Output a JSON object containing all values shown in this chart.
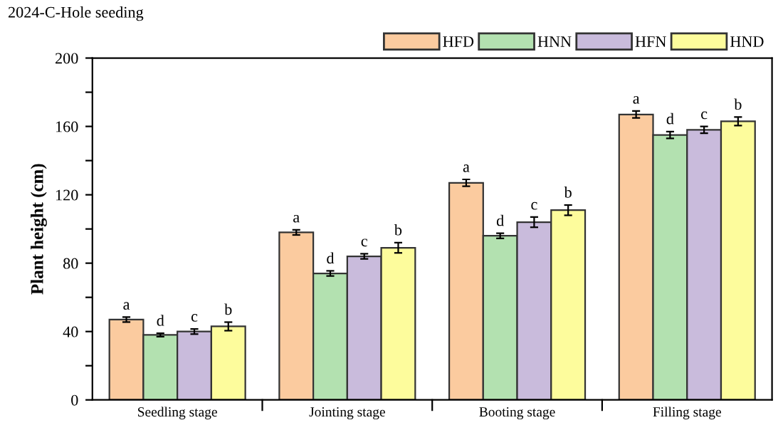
{
  "chart_data": {
    "type": "bar",
    "title": "2024-C-Hole seeding",
    "ylabel": "Plant height (cm)",
    "categories": [
      "Seedling stage",
      "Jointing stage",
      "Booting stage",
      "Filling stage"
    ],
    "series": [
      {
        "name": "HFD",
        "color": "#fbcb9f",
        "values": [
          47,
          98,
          127,
          167
        ],
        "errors": [
          1.5,
          1.5,
          2,
          2
        ],
        "value_labels": [
          "a",
          "a",
          "a",
          "a"
        ]
      },
      {
        "name": "HNN",
        "color": "#b3e1b0",
        "values": [
          38,
          74,
          96,
          155
        ],
        "errors": [
          1,
          1.5,
          1.5,
          2
        ],
        "value_labels": [
          "d",
          "d",
          "d",
          "d"
        ]
      },
      {
        "name": "HFN",
        "color": "#c9bbdc",
        "values": [
          40,
          84,
          104,
          158
        ],
        "errors": [
          1.5,
          1.5,
          3,
          2
        ],
        "value_labels": [
          "c",
          "c",
          "c",
          "c"
        ]
      },
      {
        "name": "HND",
        "color": "#fdfc9c",
        "values": [
          43,
          89,
          111,
          163
        ],
        "errors": [
          2.5,
          3,
          3,
          2.5
        ],
        "value_labels": [
          "b",
          "b",
          "b",
          "b"
        ]
      }
    ],
    "ylim": [
      0,
      200
    ],
    "yticks": [
      0,
      {
        "value": 20,
        "label": null
      },
      40,
      {
        "value": 60,
        "label": null
      },
      80,
      {
        "value": 100,
        "label": null
      },
      120,
      {
        "value": 140,
        "label": null
      },
      160,
      {
        "value": 180,
        "label": null
      },
      200
    ],
    "legend": "top right",
    "grid": false
  }
}
